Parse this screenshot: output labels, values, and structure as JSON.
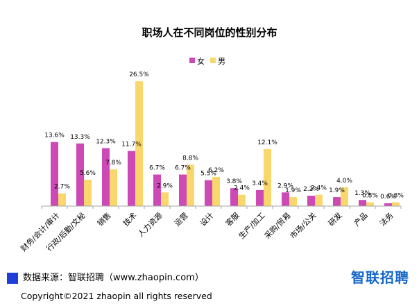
{
  "colors": {
    "female": "#cc49b6",
    "male": "#fad76c",
    "brand": "#1667c9",
    "source_square": "#1f3dd8",
    "axis": "#a6a6a6"
  },
  "chart_data": {
    "type": "bar",
    "title": "职场人在不同岗位的性别分布",
    "categories": [
      "财务/会计/审计",
      "行政/后勤/文秘",
      "销售",
      "技术",
      "人力资源",
      "运营",
      "设计",
      "客服",
      "生产/加工",
      "采购/贸易",
      "市场/公关",
      "研发",
      "产品",
      "法务"
    ],
    "series": [
      {
        "name": "女",
        "values": [
          13.6,
          13.3,
          12.3,
          11.7,
          6.7,
          6.7,
          5.5,
          3.8,
          3.4,
          2.9,
          2.2,
          1.9,
          1.3,
          0.6
        ]
      },
      {
        "name": "男",
        "values": [
          2.7,
          5.6,
          7.8,
          26.5,
          2.9,
          8.8,
          6.2,
          2.4,
          12.1,
          1.9,
          2.4,
          4.0,
          0.8,
          0.8
        ]
      }
    ],
    "value_suffix": "%",
    "ylim": [
      0,
      28
    ],
    "legend_position": "top-center",
    "grid": false
  },
  "footer": {
    "source": "数据来源：智联招聘（www.zhaopin.com）",
    "brand": "智联招聘",
    "copyright": "Copyright©2021 zhaopin all rights reserved"
  }
}
